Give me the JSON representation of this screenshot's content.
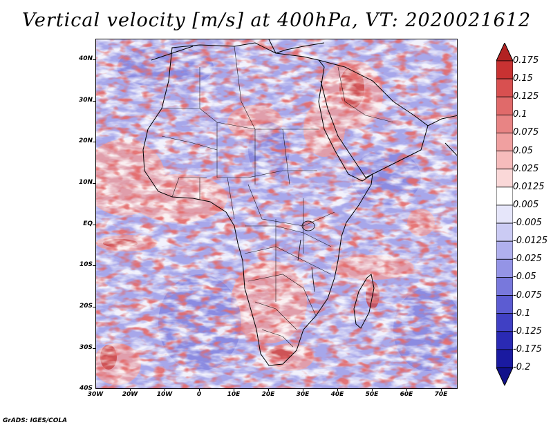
{
  "title": "Vertical velocity [m/s] at 400hPa, VT: 2020021612",
  "credit": "GrADS: IGES/COLA",
  "map": {
    "region": "Africa",
    "lat_labels": [
      "40N",
      "30N",
      "20N",
      "10N",
      "EQ",
      "10S",
      "20S",
      "30S",
      "40S"
    ],
    "lon_labels": [
      "30W",
      "20W",
      "10W",
      "0",
      "10E",
      "20E",
      "30E",
      "40E",
      "50E",
      "60E",
      "70E"
    ],
    "lat_range": [
      -40,
      45
    ],
    "lon_range": [
      -30,
      75
    ]
  },
  "colorbar": {
    "labels": [
      "0.175",
      "0.15",
      "0.125",
      "0.1",
      "0.075",
      "0.05",
      "0.025",
      "0.0125",
      "0.005",
      "-0.005",
      "-0.0125",
      "-0.025",
      "-0.05",
      "-0.075",
      "-0.1",
      "-0.125",
      "-0.175",
      "-0.2"
    ],
    "colors": [
      "#b22222",
      "#c83232",
      "#d85050",
      "#e06a6a",
      "#e88484",
      "#f0a0a0",
      "#f6bcbc",
      "#fad8d8",
      "#ffffff",
      "#e6e6fa",
      "#cbcbf4",
      "#b0b0ee",
      "#9494e6",
      "#7878dc",
      "#5c5cd2",
      "#4040c4",
      "#2a2ab4",
      "#1a1aa0",
      "#10108a"
    ]
  },
  "colors": {
    "background_field": "#a9a9ec",
    "positive": "#e87878",
    "negative": "#6f6fdc",
    "boundary": "#000000"
  }
}
